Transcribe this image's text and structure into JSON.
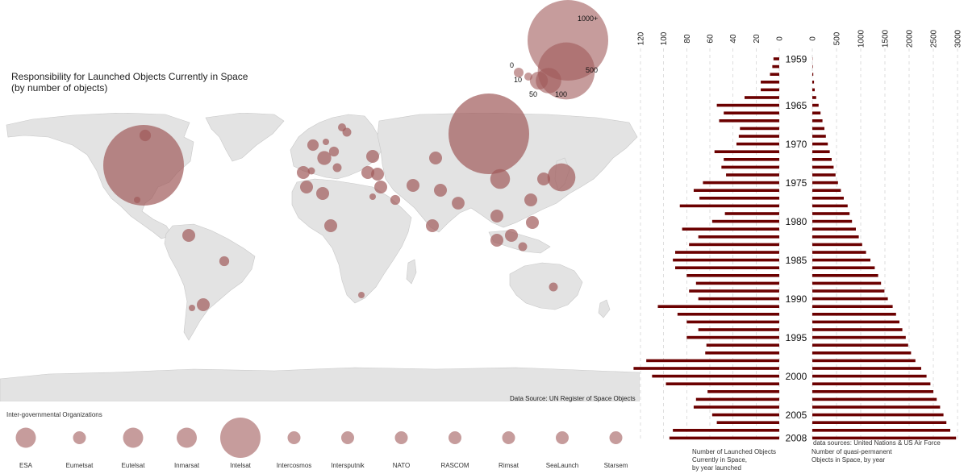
{
  "map": {
    "title": "Responsibility for Launched Objects Currently in Space",
    "subtitle": "(by number of objects)",
    "source": "Data Source: UN Register of Space Objects",
    "legend_labels": [
      "0",
      "10",
      "50",
      "100",
      "500",
      "1000+"
    ],
    "bubble_color": "#a05a5a",
    "bubbles": [
      {
        "region": "USA",
        "value": 1000
      },
      {
        "region": "Russia",
        "value": 1000
      },
      {
        "region": "Canada",
        "value": 20
      },
      {
        "region": "Mexico",
        "value": 5
      },
      {
        "region": "Japan",
        "value": 120
      },
      {
        "region": "China",
        "value": 60
      },
      {
        "region": "France",
        "value": 30
      },
      {
        "region": "UK",
        "value": 20
      },
      {
        "region": "Germany",
        "value": 15
      },
      {
        "region": "Italy",
        "value": 12
      },
      {
        "region": "Spain",
        "value": 8
      },
      {
        "region": "Luxembourg",
        "value": 12
      },
      {
        "region": "Netherlands",
        "value": 5
      },
      {
        "region": "Sweden",
        "value": 10
      },
      {
        "region": "Brazil",
        "value": 15
      },
      {
        "region": "India",
        "value": 25
      },
      {
        "region": "Indonesia",
        "value": 12
      },
      {
        "region": "Australia",
        "value": 12
      },
      {
        "region": "Egypt",
        "value": 4
      },
      {
        "region": "Saudi Arabia",
        "value": 15
      },
      {
        "region": "Argentina",
        "value": 4
      },
      {
        "region": "South Africa",
        "value": 4
      }
    ]
  },
  "organizations": {
    "title": "Inter-governmental Organizations",
    "items": [
      {
        "name": "ESA",
        "value": 30
      },
      {
        "name": "Eumetsat",
        "value": 8
      },
      {
        "name": "Eutelsat",
        "value": 30
      },
      {
        "name": "Inmarsat",
        "value": 30
      },
      {
        "name": "Intelsat",
        "value": 60
      },
      {
        "name": "Intercosmos",
        "value": 8
      },
      {
        "name": "Intersputnik",
        "value": 8
      },
      {
        "name": "NATO",
        "value": 8
      },
      {
        "name": "RASCOM",
        "value": 8
      },
      {
        "name": "Rimsat",
        "value": 8
      },
      {
        "name": "SeaLaunch",
        "value": 8
      },
      {
        "name": "Starsem",
        "value": 8
      }
    ]
  },
  "chart_data": [
    {
      "type": "bar",
      "orientation": "horizontal",
      "direction": "right-to-left",
      "caption": "Number of Launched Objects Currently in Space, by year launched",
      "caption_lines": [
        "Number of Launched Objects",
        "Currently in Space,",
        "by year launched"
      ],
      "xlim": [
        0,
        120
      ],
      "xticks": [
        0,
        20,
        40,
        60,
        80,
        100,
        120
      ],
      "color": "#6b0000",
      "years": [
        1959,
        1960,
        1961,
        1962,
        1963,
        1964,
        1965,
        1966,
        1967,
        1968,
        1969,
        1970,
        1971,
        1972,
        1973,
        1974,
        1975,
        1976,
        1977,
        1978,
        1979,
        1980,
        1981,
        1982,
        1983,
        1984,
        1985,
        1986,
        1987,
        1988,
        1989,
        1990,
        1991,
        1992,
        1993,
        1994,
        1995,
        1996,
        1997,
        1998,
        1999,
        2000,
        2001,
        2002,
        2003,
        2004,
        2005,
        2006,
        2007,
        2008
      ],
      "values": [
        5,
        6,
        8,
        16,
        16,
        30,
        54,
        48,
        52,
        34,
        35,
        37,
        56,
        48,
        50,
        46,
        66,
        74,
        69,
        86,
        47,
        58,
        84,
        70,
        78,
        90,
        92,
        90,
        80,
        72,
        78,
        70,
        105,
        88,
        80,
        70,
        80,
        63,
        64,
        115,
        126,
        110,
        98,
        62,
        72,
        74,
        58,
        54,
        92,
        95
      ]
    },
    {
      "type": "bar",
      "orientation": "horizontal",
      "caption": "Number of quasi-permanent Objects in Space, by year",
      "caption_lines": [
        "Number of quasi-permanent",
        "Objects in Space, by year"
      ],
      "xlim": [
        0,
        3000
      ],
      "xticks": [
        0,
        500,
        1000,
        1500,
        2000,
        2500,
        3000
      ],
      "color": "#6b0000",
      "source": "data sources: United Nations & US Air Force",
      "years": [
        1959,
        1960,
        1961,
        1962,
        1963,
        1964,
        1965,
        1966,
        1967,
        1968,
        1969,
        1970,
        1971,
        1972,
        1973,
        1974,
        1975,
        1976,
        1977,
        1978,
        1979,
        1980,
        1981,
        1982,
        1983,
        1984,
        1985,
        1986,
        1987,
        1988,
        1989,
        1990,
        1991,
        1992,
        1993,
        1994,
        1995,
        1996,
        1997,
        1998,
        1999,
        2000,
        2001,
        2002,
        2003,
        2004,
        2005,
        2006,
        2007,
        2008
      ],
      "values": [
        5,
        10,
        20,
        35,
        50,
        80,
        130,
        170,
        210,
        250,
        280,
        320,
        360,
        400,
        440,
        480,
        530,
        590,
        650,
        730,
        770,
        820,
        900,
        960,
        1030,
        1110,
        1200,
        1290,
        1360,
        1420,
        1490,
        1560,
        1660,
        1730,
        1800,
        1860,
        1930,
        1980,
        2040,
        2130,
        2250,
        2360,
        2440,
        2500,
        2570,
        2640,
        2710,
        2770,
        2850,
        2970
      ]
    }
  ],
  "year_labels": [
    "1959",
    "1965",
    "1970",
    "1975",
    "1980",
    "1985",
    "1990",
    "1995",
    "2000",
    "2005",
    "2008"
  ]
}
